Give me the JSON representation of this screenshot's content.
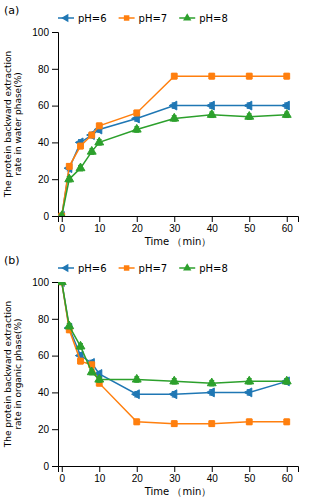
{
  "chart_data": [
    {
      "type": "line",
      "title": "(a)",
      "x_label": "Time （min）",
      "y_label": "The protein backward extraction\nrate in water phase(%)",
      "x": [
        0,
        2,
        5,
        8,
        10,
        20,
        30,
        40,
        50,
        60
      ],
      "xlim": [
        -1,
        63
      ],
      "xticks": [
        0,
        10,
        20,
        30,
        40,
        50,
        60
      ],
      "ylim": [
        0,
        100
      ],
      "yticks": [
        0,
        20,
        40,
        60,
        80,
        100
      ],
      "grid": false,
      "legend": "upper left",
      "series": [
        {
          "name": "pH=6",
          "marker": "triangle-left",
          "values": [
            0,
            26,
            40,
            44,
            47,
            53,
            60,
            60,
            60,
            60
          ],
          "errors": [
            0,
            1.5,
            1.5,
            1.5,
            1.5,
            1.5,
            1.5,
            1.5,
            1.5,
            1.5
          ]
        },
        {
          "name": "pH=7",
          "marker": "square",
          "values": [
            0,
            27,
            38,
            44,
            49,
            56,
            76,
            76,
            76,
            76
          ],
          "errors": [
            0,
            1.5,
            1.5,
            1.5,
            1.5,
            1.5,
            1.5,
            1.5,
            1.5,
            1.5
          ]
        },
        {
          "name": "pH=8",
          "marker": "triangle-up",
          "values": [
            0,
            20,
            26,
            35,
            40,
            47,
            53,
            55,
            54,
            55
          ],
          "errors": [
            0,
            1.5,
            1.5,
            1.5,
            1.5,
            1.5,
            1.5,
            1.5,
            1.5,
            1.5
          ]
        }
      ]
    },
    {
      "type": "line",
      "title": "(b)",
      "x_label": "Time （min）",
      "y_label": "The protein backward extraction\nrate in organic phase(%)",
      "x": [
        0,
        2,
        5,
        8,
        10,
        20,
        30,
        40,
        50,
        60
      ],
      "xlim": [
        -1,
        63
      ],
      "xticks": [
        0,
        10,
        20,
        30,
        40,
        50,
        60
      ],
      "ylim": [
        0,
        100
      ],
      "yticks": [
        0,
        20,
        40,
        60,
        80,
        100
      ],
      "grid": false,
      "legend": "upper left",
      "series": [
        {
          "name": "pH=6",
          "marker": "triangle-left",
          "values": [
            100,
            75,
            60,
            56,
            50,
            39,
            39,
            40,
            40,
            46
          ],
          "errors": [
            0,
            1.5,
            1.5,
            1.5,
            1.5,
            1.5,
            1.5,
            1.5,
            1.5,
            1.5
          ]
        },
        {
          "name": "pH=7",
          "marker": "square",
          "values": [
            100,
            74,
            57,
            55,
            45,
            24,
            23,
            23,
            24,
            24
          ],
          "errors": [
            0,
            1.5,
            1.5,
            1.5,
            1.5,
            1.5,
            1.5,
            1.5,
            1.5,
            1.5
          ]
        },
        {
          "name": "pH=8",
          "marker": "triangle-up",
          "values": [
            100,
            76,
            65,
            51,
            47,
            47,
            46,
            45,
            46,
            46
          ],
          "errors": [
            0,
            1.5,
            1.5,
            1.5,
            1.5,
            1.5,
            1.5,
            1.5,
            1.5,
            1.5
          ]
        }
      ]
    }
  ]
}
